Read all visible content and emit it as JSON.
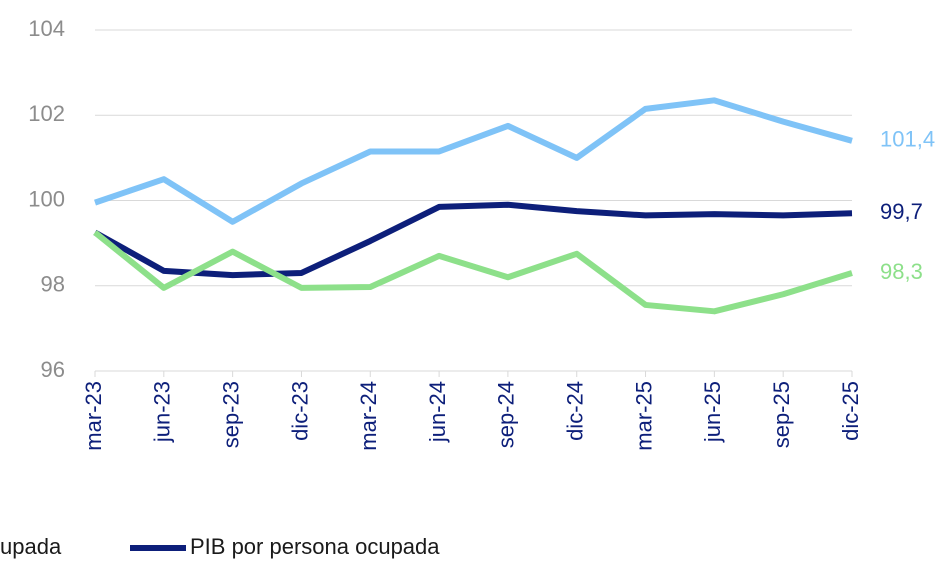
{
  "chart_data": {
    "type": "line",
    "categories": [
      "mar-23",
      "jun-23",
      "sep-23",
      "dic-23",
      "mar-24",
      "jun-24",
      "sep-24",
      "dic-24",
      "mar-25",
      "jun-25",
      "sep-25",
      "dic-25"
    ],
    "series": [
      {
        "name": "upada",
        "color": "#7fc3f7",
        "values": [
          99.95,
          100.5,
          99.5,
          100.4,
          101.15,
          101.15,
          101.75,
          101.0,
          102.15,
          102.35,
          101.85,
          101.4
        ],
        "value_labels": [
          null,
          null,
          null,
          null,
          null,
          null,
          null,
          null,
          null,
          null,
          null,
          "101,4"
        ]
      },
      {
        "name": "PIB por persona ocupada",
        "color": "#0d1f7a",
        "values": [
          99.25,
          98.35,
          98.25,
          98.3,
          99.05,
          99.85,
          99.9,
          99.75,
          99.65,
          99.68,
          99.65,
          99.7
        ],
        "value_labels": [
          null,
          null,
          null,
          null,
          null,
          null,
          null,
          null,
          null,
          null,
          null,
          "99,7"
        ]
      },
      {
        "color": "#8de08a",
        "values": [
          99.25,
          97.95,
          98.8,
          97.95,
          97.97,
          98.7,
          98.2,
          98.75,
          97.55,
          97.4,
          97.8,
          98.3
        ],
        "value_labels": [
          null,
          null,
          null,
          null,
          null,
          null,
          null,
          null,
          null,
          null,
          null,
          "98,3"
        ]
      }
    ],
    "ylim": [
      96,
      104
    ],
    "yticks": [
      96,
      98,
      100,
      102,
      104
    ],
    "grid": true
  }
}
